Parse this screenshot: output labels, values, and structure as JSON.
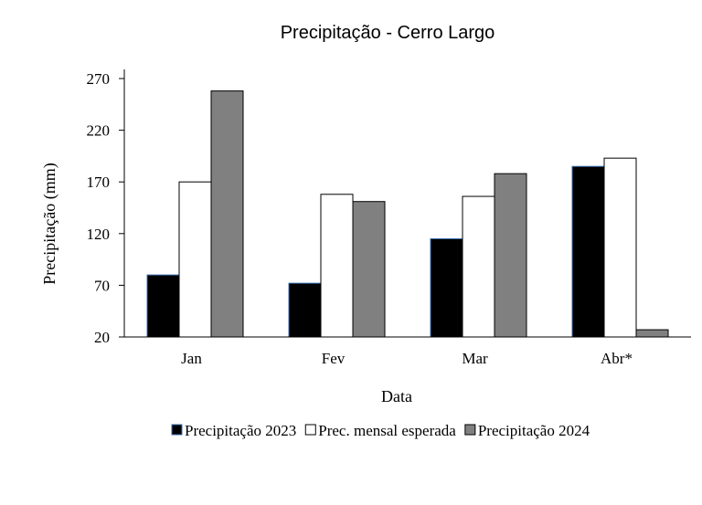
{
  "chart_data": {
    "type": "bar",
    "title": "Precipitação - Cerro Largo",
    "xlabel": "Data",
    "ylabel": "Precipitação (mm)",
    "ylim": [
      20,
      270
    ],
    "yticks": [
      20,
      70,
      120,
      170,
      220,
      270
    ],
    "grid": false,
    "legend_position": "bottom",
    "categories": [
      "Jan",
      "Fev",
      "Mar",
      "Abr*"
    ],
    "series": [
      {
        "name": "Precipitação 2023",
        "color": "#000000",
        "values": [
          80,
          72,
          115,
          185
        ]
      },
      {
        "name": "Prec. mensal esperada",
        "color": "#ffffff",
        "values": [
          170,
          158,
          156,
          193
        ]
      },
      {
        "name": "Precipitação 2024",
        "color": "#808080",
        "values": [
          258,
          151,
          178,
          27
        ]
      }
    ]
  }
}
